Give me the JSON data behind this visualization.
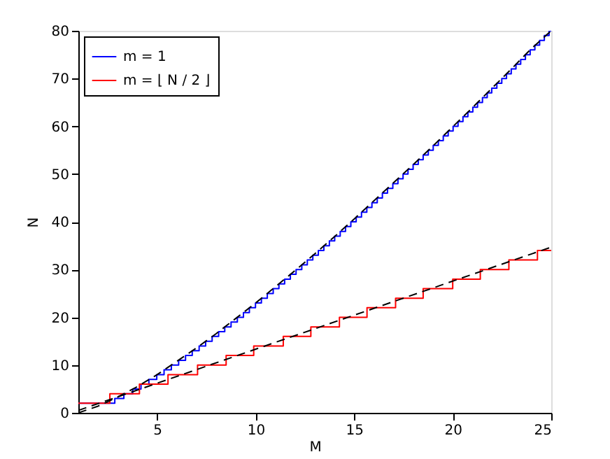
{
  "chart_data": {
    "type": "step",
    "xlabel": "M",
    "ylabel": "N",
    "xlim": [
      1,
      25
    ],
    "xticks": [
      5,
      10,
      15,
      20,
      25
    ],
    "ylim": [
      0,
      80
    ],
    "yticks": [
      0,
      10,
      20,
      30,
      40,
      50,
      60,
      70,
      80
    ],
    "grid": false,
    "legend": "top left",
    "line_style": "solid",
    "series": [
      {
        "name": "m = 1",
        "color": "#0000ff",
        "x": [
          1,
          2.85,
          3.31,
          3.76,
          4.18,
          4.58,
          4.98,
          5.35,
          5.72,
          6.09,
          6.44,
          6.78,
          7.13,
          7.46,
          7.79,
          8.12,
          8.43,
          8.75,
          9.07,
          9.38,
          9.68,
          9.99,
          10.29,
          10.59,
          10.89,
          11.18,
          11.47,
          11.76,
          12.05,
          12.34,
          12.62,
          12.9,
          13.18,
          13.46,
          13.74,
          14.01,
          14.29,
          14.56,
          14.83,
          15.1,
          15.37,
          15.64,
          15.9,
          16.17,
          16.43,
          16.69,
          16.96,
          17.22,
          17.48,
          17.73,
          17.99,
          18.25,
          18.5,
          18.76,
          19.01,
          19.27,
          19.52,
          19.77,
          20.02,
          20.27,
          20.52,
          20.77,
          21.02,
          21.26,
          21.51,
          21.75,
          21.98,
          22.24,
          22.49,
          22.73,
          22.97,
          23.21,
          23.45,
          23.69,
          23.93,
          24.17,
          24.41,
          24.65,
          24.89,
          25
        ],
        "values": [
          2,
          3,
          4,
          5,
          6,
          7,
          8,
          9,
          10,
          11,
          12,
          13,
          14,
          15,
          16,
          17,
          18,
          19,
          20,
          21,
          22,
          23,
          24,
          25,
          26,
          27,
          28,
          29,
          30,
          31,
          32,
          33,
          34,
          35,
          36,
          37,
          38,
          39,
          40,
          41,
          42,
          43,
          44,
          45,
          46,
          47,
          48,
          49,
          50,
          51,
          52,
          53,
          54,
          55,
          56,
          57,
          58,
          59,
          60,
          61,
          62,
          63,
          64,
          65,
          66,
          67,
          68,
          69,
          70,
          71,
          72,
          73,
          74,
          75,
          76,
          77,
          78,
          79,
          80,
          80
        ]
      },
      {
        "name": "m = ⌊ N / 2 ⌋",
        "color": "#ff0000",
        "x": [
          1,
          2.6,
          4.1,
          5.55,
          7.05,
          8.5,
          9.9,
          11.4,
          12.8,
          14.25,
          15.65,
          17.1,
          18.5,
          20,
          21.4,
          22.85,
          24.3,
          25
        ],
        "values": [
          2,
          4,
          6,
          8,
          10,
          12,
          14,
          16,
          18,
          20,
          22,
          24,
          26,
          28,
          30,
          32,
          34,
          34
        ]
      },
      {
        "color": "#000000",
        "type": "line",
        "line_style": "dashed",
        "x": [
          1,
          2,
          3,
          4,
          5,
          6,
          7,
          8,
          9,
          10,
          11,
          12,
          13,
          14,
          15,
          16,
          17,
          18,
          19,
          20,
          21,
          22,
          23,
          24,
          25
        ],
        "values": [
          0,
          1.4,
          3.3,
          5.5,
          8.0,
          10.8,
          13.6,
          16.6,
          19.8,
          23.0,
          26.4,
          29.8,
          33.3,
          36.9,
          40.6,
          44.4,
          48.2,
          52.0,
          55.9,
          59.9,
          63.9,
          68.0,
          72.1,
          76.3,
          80.0
        ]
      },
      {
        "color": "#000000",
        "type": "line",
        "line_style": "dashed",
        "x": [
          1,
          25
        ],
        "values": [
          0.5,
          34.7
        ]
      }
    ]
  }
}
